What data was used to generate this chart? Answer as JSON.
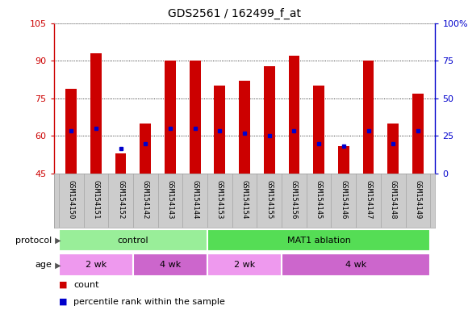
{
  "title": "GDS2561 / 162499_f_at",
  "samples": [
    "GSM154150",
    "GSM154151",
    "GSM154152",
    "GSM154142",
    "GSM154143",
    "GSM154144",
    "GSM154153",
    "GSM154154",
    "GSM154155",
    "GSM154156",
    "GSM154145",
    "GSM154146",
    "GSM154147",
    "GSM154148",
    "GSM154149"
  ],
  "bar_heights": [
    79,
    93,
    53,
    65,
    90,
    90,
    80,
    82,
    88,
    92,
    80,
    56,
    90,
    65,
    77
  ],
  "blue_dots": [
    62,
    63,
    55,
    57,
    63,
    63,
    62,
    61,
    60,
    62,
    57,
    56,
    62,
    57,
    62
  ],
  "ylim_left": [
    45,
    105
  ],
  "yticks_left": [
    45,
    60,
    75,
    90,
    105
  ],
  "ylim_right": [
    0,
    100
  ],
  "yticks_right": [
    0,
    25,
    50,
    75,
    100
  ],
  "bar_color": "#cc0000",
  "dot_color": "#0000cc",
  "bg_color": "#ffffff",
  "plot_bg": "#ffffff",
  "protocol_groups": [
    {
      "label": "control",
      "start": 0,
      "end": 6,
      "color": "#99ee99"
    },
    {
      "label": "MAT1 ablation",
      "start": 6,
      "end": 15,
      "color": "#55dd55"
    }
  ],
  "age_groups": [
    {
      "label": "2 wk",
      "start": 0,
      "end": 3,
      "color": "#ee99ee"
    },
    {
      "label": "4 wk",
      "start": 3,
      "end": 6,
      "color": "#cc66cc"
    },
    {
      "label": "2 wk",
      "start": 6,
      "end": 9,
      "color": "#ee99ee"
    },
    {
      "label": "4 wk",
      "start": 9,
      "end": 15,
      "color": "#cc66cc"
    }
  ],
  "legend_count_label": "count",
  "legend_pct_label": "percentile rank within the sample",
  "title_fontsize": 10,
  "axis_label_color_left": "#cc0000",
  "axis_label_color_right": "#0000cc",
  "bar_width": 0.45,
  "label_fontsize": 6.5,
  "row_fontsize": 8,
  "legend_fontsize": 8
}
